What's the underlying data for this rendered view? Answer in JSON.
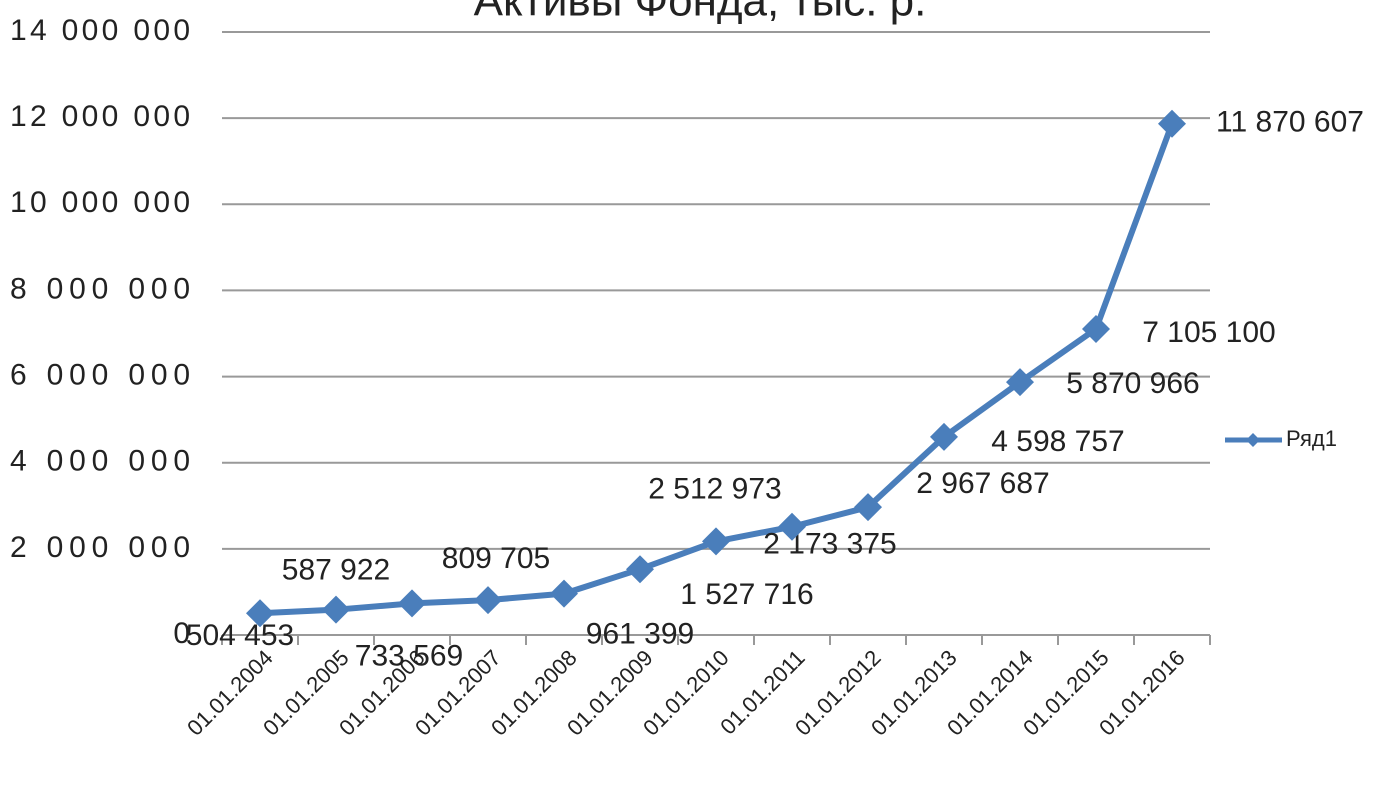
{
  "chart_data": {
    "type": "line",
    "title": "Активы Фонда, тыс. р.",
    "categories": [
      "01.01.2004",
      "01.01.2005",
      "01.01.2006",
      "01.01.2007",
      "01.01.2008",
      "01.01.2009",
      "01.01.2010",
      "01.01.2011",
      "01.01.2012",
      "01.01.2013",
      "01.01.2014",
      "01.01.2015",
      "01.01.2016"
    ],
    "series": [
      {
        "name": "Ряд1",
        "color": "#4a7ebb",
        "values": [
          504453,
          587922,
          733569,
          809705,
          961399,
          1527716,
          2173375,
          2512973,
          2967687,
          4598757,
          5870966,
          7105100,
          11870607
        ],
        "value_labels": [
          "504 453",
          "587 922",
          "733 569",
          "809 705",
          "961 399",
          "1 527 716",
          "2 173 375",
          "2 512 973",
          "2 967 687",
          "4 598 757",
          "5 870 966",
          "7 105 100",
          "11 870 607"
        ]
      }
    ],
    "ylim": [
      0,
      14000000
    ],
    "yticks": [
      0,
      {
        "value": 2000000,
        "label": "2 000 000"
      },
      {
        "value": 4000000,
        "label": "4 000 000"
      },
      {
        "value": 6000000,
        "label": "6 000 000"
      },
      {
        "value": 8000000,
        "label": "8 000 000"
      },
      {
        "value": 10000000,
        "label": "10 000 000"
      },
      {
        "value": 12000000,
        "label": "12 000 000"
      },
      {
        "value": 14000000,
        "label": "14 000 000"
      }
    ],
    "grid": true,
    "legend": "right"
  }
}
